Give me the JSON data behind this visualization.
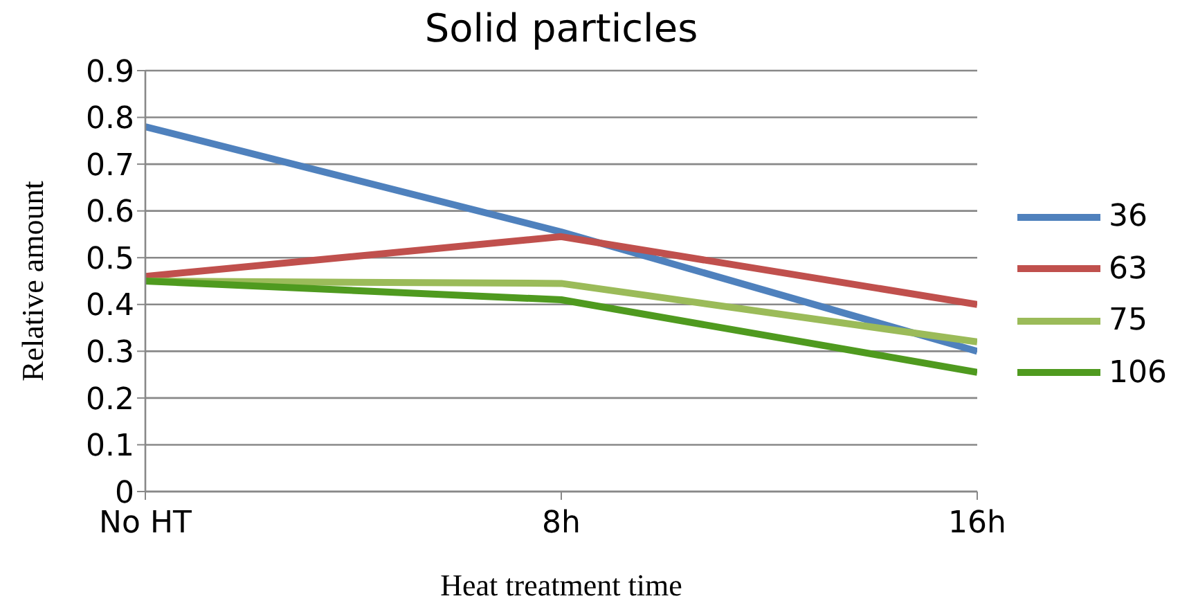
{
  "chart_data": {
    "type": "line",
    "title": "Solid particles",
    "xlabel": "Heat treatment time",
    "ylabel": "Relative amount",
    "categories": [
      "No HT",
      "8h",
      "16h"
    ],
    "series": [
      {
        "name": "36",
        "color": "#4f81bd",
        "values": [
          0.78,
          0.555,
          0.3
        ]
      },
      {
        "name": "63",
        "color": "#c0504d",
        "values": [
          0.46,
          0.545,
          0.4
        ]
      },
      {
        "name": "75",
        "color": "#9bbb59",
        "values": [
          0.45,
          0.445,
          0.32
        ]
      },
      {
        "name": "106",
        "color": "#4f9a1f",
        "values": [
          0.45,
          0.41,
          0.255
        ]
      }
    ],
    "ylim": [
      0,
      0.9
    ],
    "yticks": [
      0,
      0.1,
      0.2,
      0.3,
      0.4,
      0.5,
      0.6,
      0.7,
      0.8,
      0.9
    ],
    "grid": "y",
    "legend": "right",
    "marker": "none",
    "line_style": "solid"
  }
}
